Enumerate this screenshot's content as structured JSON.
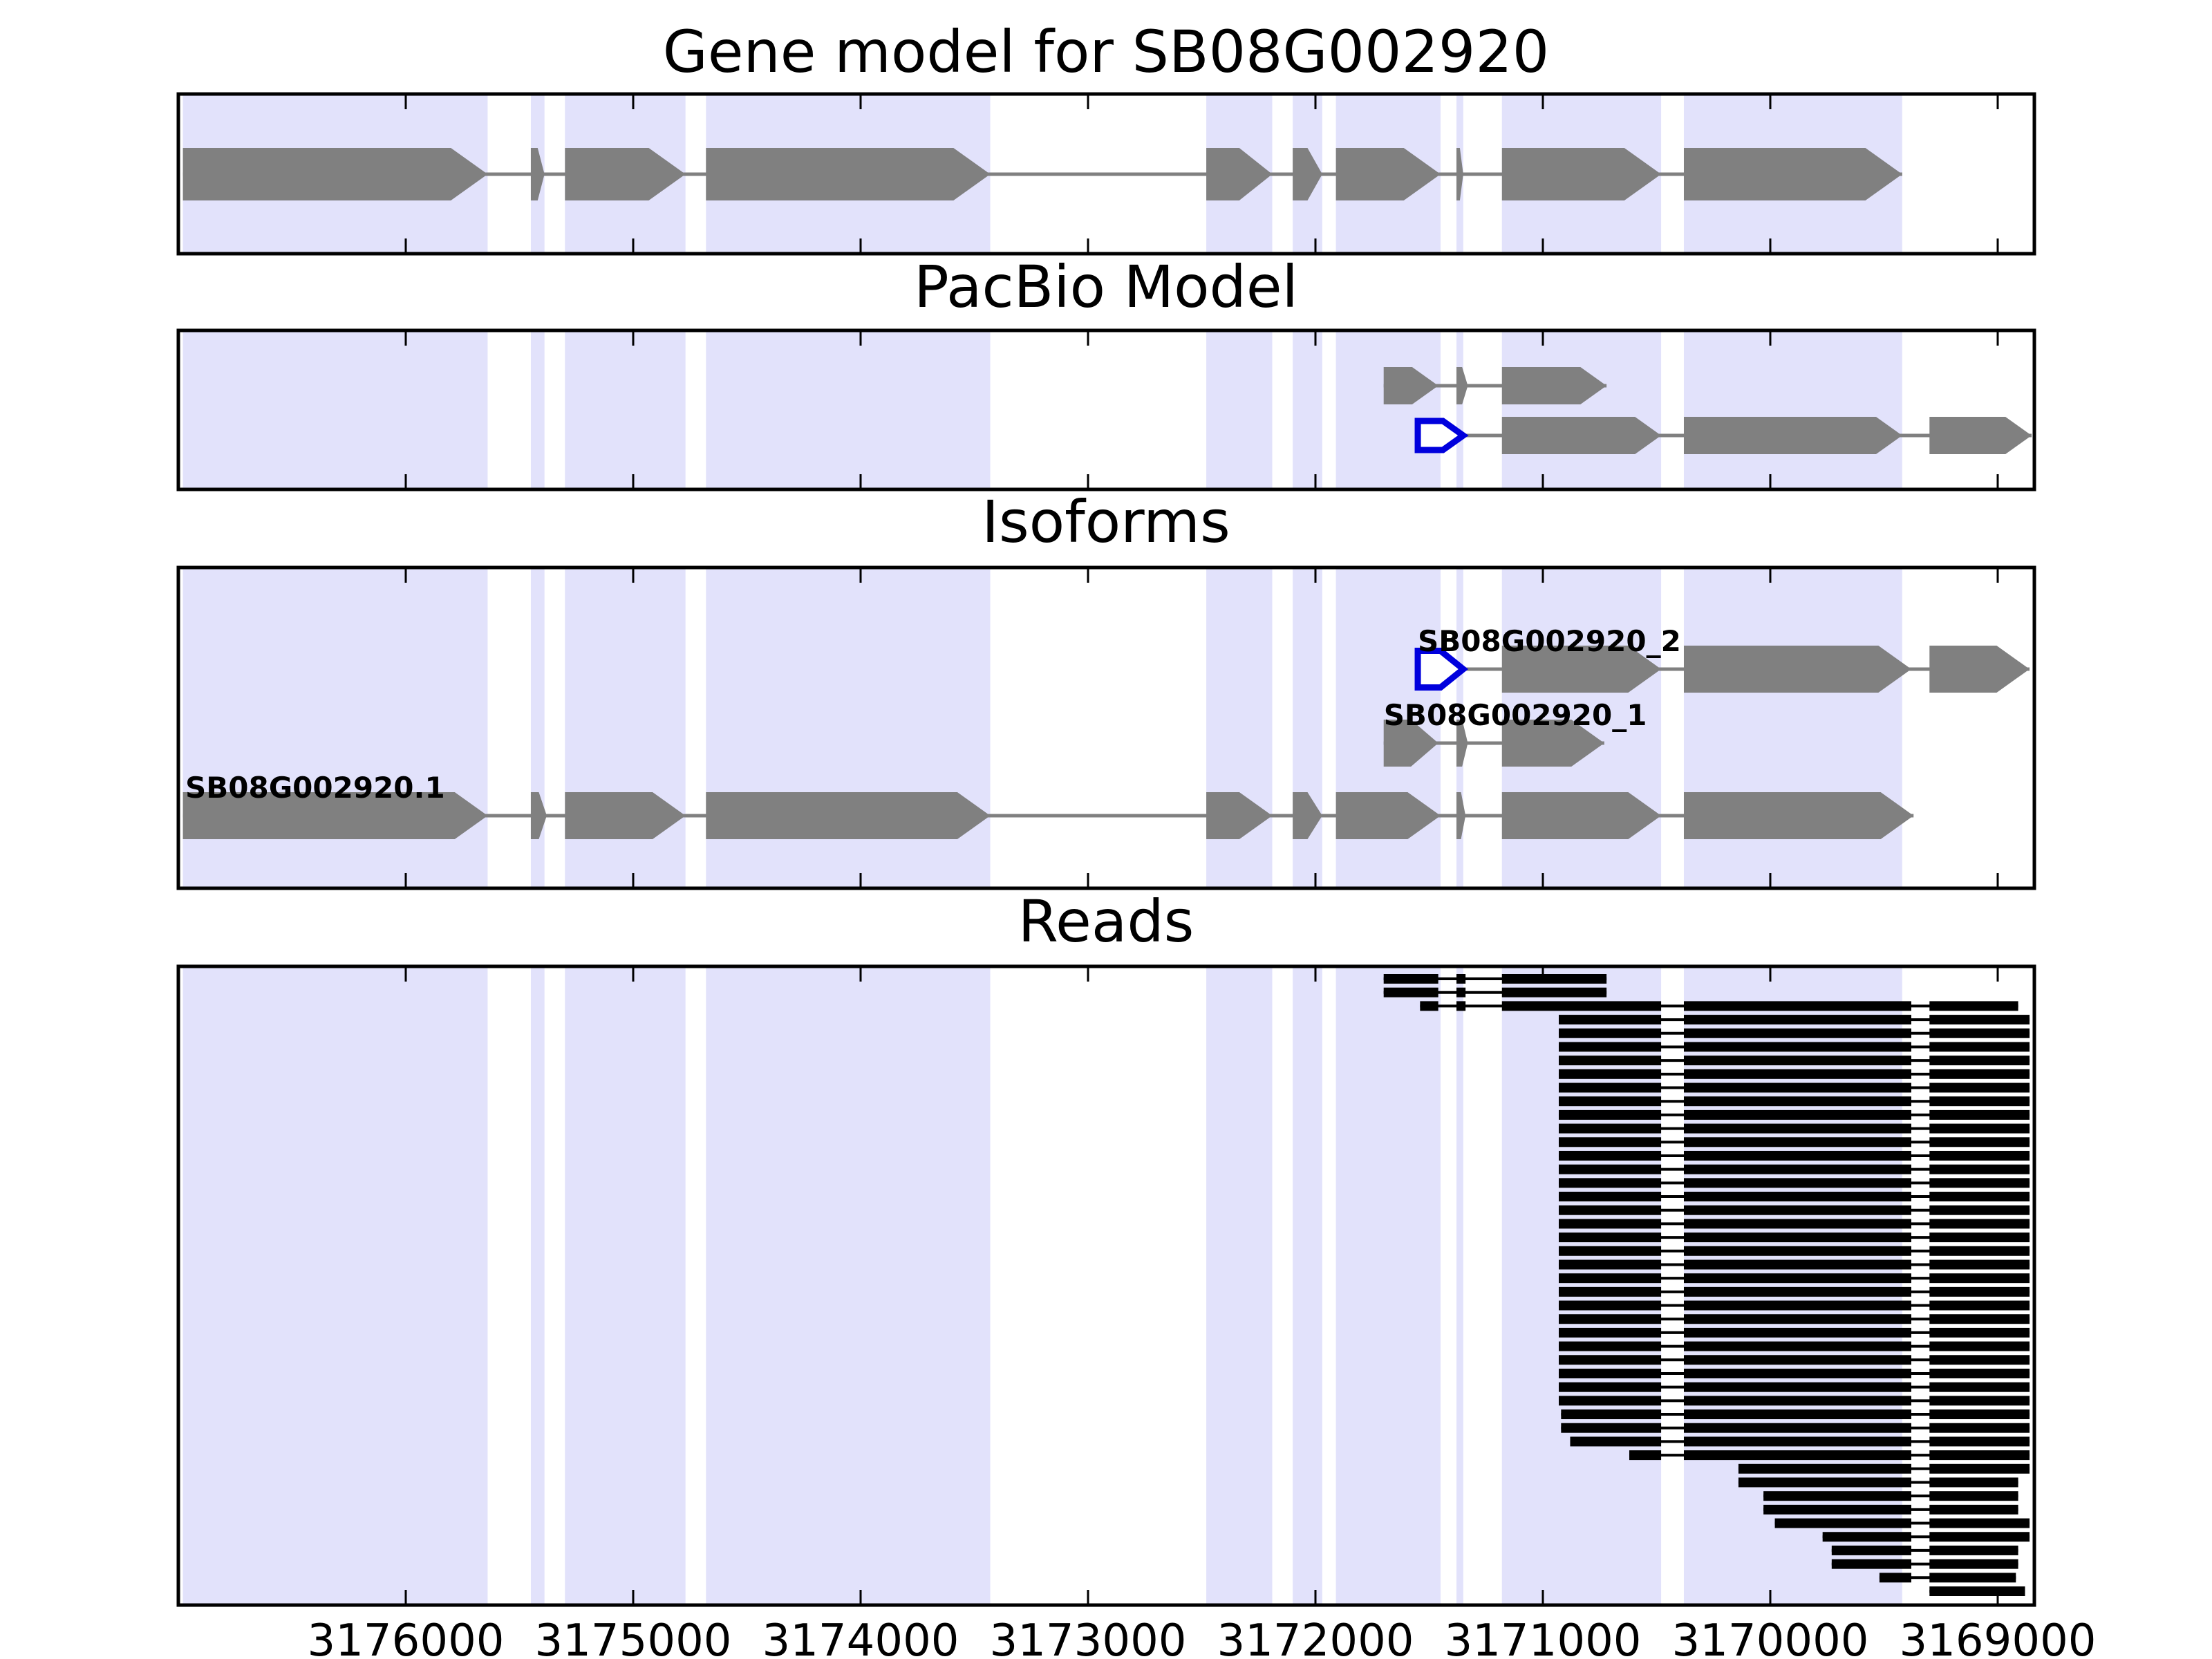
{
  "chart_data": {
    "type": "gene-track",
    "title": "Gene model for SB08G002920",
    "x_axis": {
      "reversed": true,
      "range": [
        3176000,
        3169000
      ],
      "ticks": [
        3176000,
        3175000,
        3174000,
        3173000,
        3172000,
        3171000,
        3170000,
        3169000
      ],
      "tick_labels": [
        "3176000",
        "3175000",
        "3174000",
        "3173000",
        "3172000",
        "3171000",
        "3170000",
        "3169000"
      ]
    },
    "colors": {
      "exon_shade": "#e2e2fb",
      "exon": "#808080",
      "intron": "#808080",
      "utr_outline": "#0000dd",
      "read": "#000000",
      "frame": "#000000"
    },
    "exon_regions": [
      [
        3176980,
        3175640
      ],
      [
        3175450,
        3175390
      ],
      [
        3175300,
        3174770
      ],
      [
        3174680,
        3173430
      ],
      [
        3172480,
        3172190
      ],
      [
        3172100,
        3171970
      ],
      [
        3171910,
        3171450
      ],
      [
        3171380,
        3171350
      ],
      [
        3171180,
        3170480
      ],
      [
        3170380,
        3169420
      ]
    ],
    "panels": [
      {
        "title": "Gene model for SB08G002920",
        "kind": "model",
        "tracks": [
          {
            "label": "",
            "rows": 1,
            "row": 0,
            "exons": [
              [
                3176980,
                3175640
              ],
              [
                3175450,
                3175390
              ],
              [
                3175300,
                3174770
              ],
              [
                3174680,
                3173430
              ],
              [
                3172480,
                3172190
              ],
              [
                3172100,
                3171970
              ],
              [
                3171910,
                3171450
              ],
              [
                3171380,
                3171350
              ],
              [
                3171180,
                3170480
              ],
              [
                3170380,
                3169420
              ]
            ],
            "utr": []
          }
        ]
      },
      {
        "title": "PacBio Model",
        "kind": "model",
        "tracks": [
          {
            "label": "",
            "rows": 2,
            "row": 0,
            "exons": [
              [
                3171700,
                3171460
              ],
              [
                3171380,
                3171330
              ],
              [
                3171180,
                3170720
              ]
            ],
            "utr": []
          },
          {
            "label": "",
            "rows": 2,
            "row": 1,
            "exons": [
              [
                3171180,
                3170480
              ],
              [
                3170380,
                3169420
              ],
              [
                3169300,
                3168850
              ]
            ],
            "utr": [
              [
                3171550,
                3171350
              ]
            ]
          }
        ]
      },
      {
        "title": "Isoforms",
        "kind": "model",
        "tracks": [
          {
            "label": "SB08G002920_2",
            "rows": 3,
            "row": 0,
            "exons": [
              [
                3171180,
                3170480
              ],
              [
                3170380,
                3169380
              ],
              [
                3169300,
                3168860
              ]
            ],
            "utr": [
              [
                3171550,
                3171350
              ]
            ]
          },
          {
            "label": "SB08G002920_1",
            "rows": 3,
            "row": 1,
            "exons": [
              [
                3171700,
                3171460
              ],
              [
                3171380,
                3171330
              ],
              [
                3171180,
                3170730
              ]
            ],
            "utr": []
          },
          {
            "label": "SB08G002920.1",
            "rows": 3,
            "row": 2,
            "exons": [
              [
                3176980,
                3175640
              ],
              [
                3175450,
                3175380
              ],
              [
                3175300,
                3174770
              ],
              [
                3174680,
                3173430
              ],
              [
                3172480,
                3172190
              ],
              [
                3172100,
                3171970
              ],
              [
                3171910,
                3171450
              ],
              [
                3171380,
                3171340
              ],
              [
                3171180,
                3170480
              ],
              [
                3170380,
                3169370
              ]
            ],
            "utr": []
          }
        ]
      },
      {
        "title": "Reads",
        "kind": "reads",
        "reads": [
          [
            [
              3171700,
              3171460
            ],
            [
              3171380,
              3171340
            ],
            [
              3171180,
              3170720
            ]
          ],
          [
            [
              3171700,
              3171460
            ],
            [
              3171380,
              3171340
            ],
            [
              3171180,
              3170720
            ]
          ],
          [
            [
              3171540,
              3171460
            ],
            [
              3171380,
              3171340
            ],
            [
              3171180,
              3170480
            ],
            [
              3170380,
              3169380
            ],
            [
              3169300,
              3168910
            ]
          ],
          [
            [
              3170930,
              3170480
            ],
            [
              3170380,
              3169380
            ],
            [
              3169300,
              3168860
            ]
          ],
          [
            [
              3170930,
              3170480
            ],
            [
              3170380,
              3169380
            ],
            [
              3169300,
              3168860
            ]
          ],
          [
            [
              3170930,
              3170480
            ],
            [
              3170380,
              3169380
            ],
            [
              3169300,
              3168860
            ]
          ],
          [
            [
              3170930,
              3170480
            ],
            [
              3170380,
              3169380
            ],
            [
              3169300,
              3168860
            ]
          ],
          [
            [
              3170930,
              3170480
            ],
            [
              3170380,
              3169380
            ],
            [
              3169300,
              3168860
            ]
          ],
          [
            [
              3170930,
              3170480
            ],
            [
              3170380,
              3169380
            ],
            [
              3169300,
              3168860
            ]
          ],
          [
            [
              3170930,
              3170480
            ],
            [
              3170380,
              3169380
            ],
            [
              3169300,
              3168860
            ]
          ],
          [
            [
              3170930,
              3170480
            ],
            [
              3170380,
              3169380
            ],
            [
              3169300,
              3168860
            ]
          ],
          [
            [
              3170930,
              3170480
            ],
            [
              3170380,
              3169380
            ],
            [
              3169300,
              3168860
            ]
          ],
          [
            [
              3170930,
              3170480
            ],
            [
              3170380,
              3169380
            ],
            [
              3169300,
              3168860
            ]
          ],
          [
            [
              3170930,
              3170480
            ],
            [
              3170380,
              3169380
            ],
            [
              3169300,
              3168860
            ]
          ],
          [
            [
              3170930,
              3170480
            ],
            [
              3170380,
              3169380
            ],
            [
              3169300,
              3168860
            ]
          ],
          [
            [
              3170930,
              3170480
            ],
            [
              3170380,
              3169380
            ],
            [
              3169300,
              3168860
            ]
          ],
          [
            [
              3170930,
              3170480
            ],
            [
              3170380,
              3169380
            ],
            [
              3169300,
              3168860
            ]
          ],
          [
            [
              3170930,
              3170480
            ],
            [
              3170380,
              3169380
            ],
            [
              3169300,
              3168860
            ]
          ],
          [
            [
              3170930,
              3170480
            ],
            [
              3170380,
              3169380
            ],
            [
              3169300,
              3168860
            ]
          ],
          [
            [
              3170930,
              3170480
            ],
            [
              3170380,
              3169380
            ],
            [
              3169300,
              3168860
            ]
          ],
          [
            [
              3170930,
              3170480
            ],
            [
              3170380,
              3169380
            ],
            [
              3169300,
              3168860
            ]
          ],
          [
            [
              3170930,
              3170480
            ],
            [
              3170380,
              3169380
            ],
            [
              3169300,
              3168860
            ]
          ],
          [
            [
              3170930,
              3170480
            ],
            [
              3170380,
              3169380
            ],
            [
              3169300,
              3168860
            ]
          ],
          [
            [
              3170930,
              3170480
            ],
            [
              3170380,
              3169380
            ],
            [
              3169300,
              3168860
            ]
          ],
          [
            [
              3170930,
              3170480
            ],
            [
              3170380,
              3169380
            ],
            [
              3169300,
              3168860
            ]
          ],
          [
            [
              3170930,
              3170480
            ],
            [
              3170380,
              3169380
            ],
            [
              3169300,
              3168860
            ]
          ],
          [
            [
              3170930,
              3170480
            ],
            [
              3170380,
              3169380
            ],
            [
              3169300,
              3168860
            ]
          ],
          [
            [
              3170930,
              3170480
            ],
            [
              3170380,
              3169380
            ],
            [
              3169300,
              3168860
            ]
          ],
          [
            [
              3170930,
              3170480
            ],
            [
              3170380,
              3169380
            ],
            [
              3169300,
              3168860
            ]
          ],
          [
            [
              3170930,
              3170480
            ],
            [
              3170380,
              3169380
            ],
            [
              3169300,
              3168860
            ]
          ],
          [
            [
              3170930,
              3170480
            ],
            [
              3170380,
              3169380
            ],
            [
              3169300,
              3168860
            ]
          ],
          [
            [
              3170930,
              3170480
            ],
            [
              3170380,
              3169380
            ],
            [
              3169300,
              3168860
            ]
          ],
          [
            [
              3170920,
              3170480
            ],
            [
              3170380,
              3169380
            ],
            [
              3169300,
              3168860
            ]
          ],
          [
            [
              3170920,
              3170480
            ],
            [
              3170380,
              3169380
            ],
            [
              3169300,
              3168860
            ]
          ],
          [
            [
              3170880,
              3170480
            ],
            [
              3170380,
              3169380
            ],
            [
              3169300,
              3168860
            ]
          ],
          [
            [
              3170620,
              3170480
            ],
            [
              3170380,
              3169380
            ],
            [
              3169300,
              3168860
            ]
          ],
          [
            [
              3170140,
              3169380
            ],
            [
              3169300,
              3168860
            ]
          ],
          [
            [
              3170140,
              3169380
            ],
            [
              3169300,
              3168910
            ]
          ],
          [
            [
              3170030,
              3169380
            ],
            [
              3169300,
              3168910
            ]
          ],
          [
            [
              3170030,
              3169380
            ],
            [
              3169300,
              3168910
            ]
          ],
          [
            [
              3169980,
              3169380
            ],
            [
              3169300,
              3168860
            ]
          ],
          [
            [
              3169770,
              3169380
            ],
            [
              3169300,
              3168860
            ]
          ],
          [
            [
              3169730,
              3169380
            ],
            [
              3169300,
              3168910
            ]
          ],
          [
            [
              3169730,
              3169380
            ],
            [
              3169300,
              3168910
            ]
          ],
          [
            [
              3169520,
              3169380
            ],
            [
              3169300,
              3168920
            ]
          ],
          [
            [
              3169300,
              3168880
            ]
          ]
        ]
      }
    ]
  }
}
